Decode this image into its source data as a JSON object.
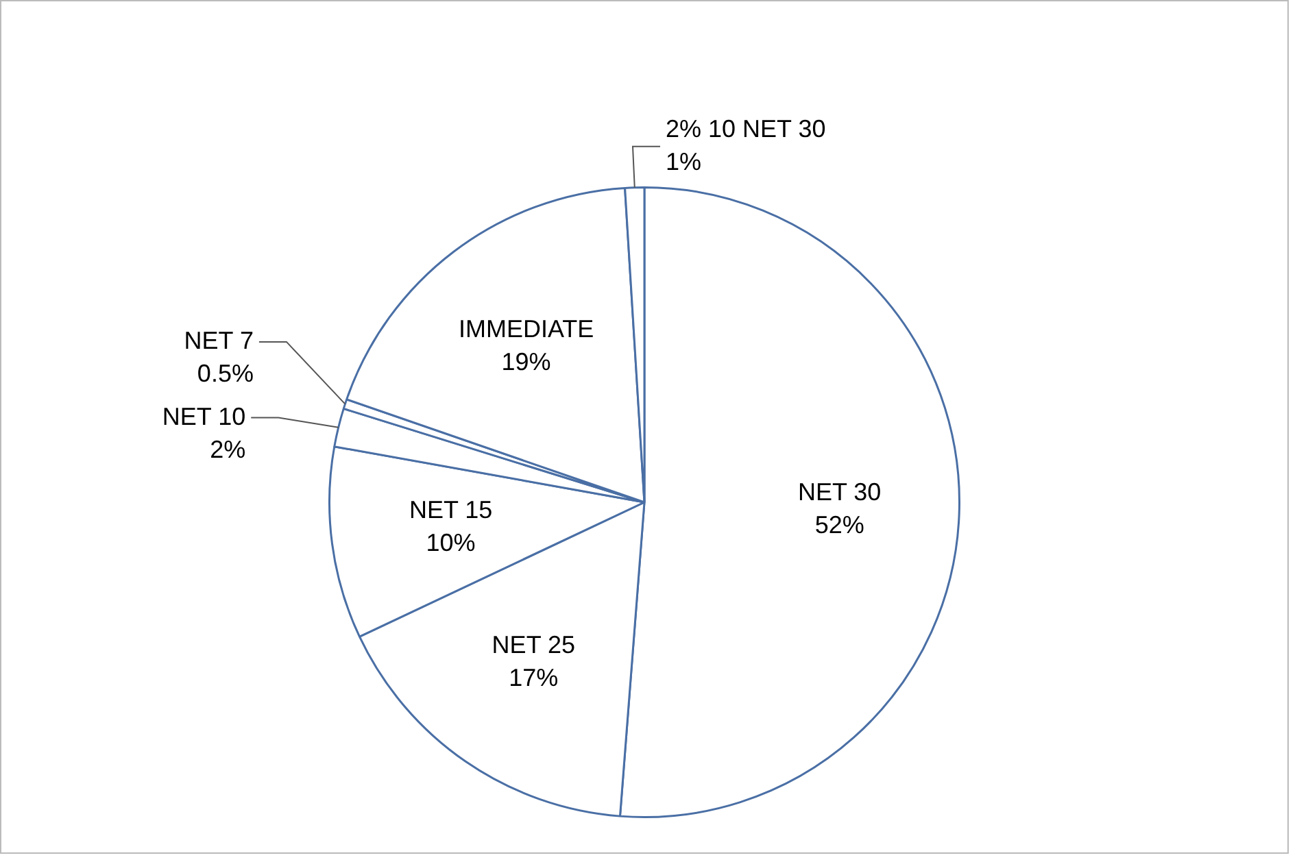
{
  "chart_data": {
    "type": "pie",
    "categories": [
      "NET 30",
      "NET 25",
      "NET 15",
      "NET 10",
      "NET 7",
      "IMMEDIATE",
      "2% 10 NET 30"
    ],
    "values": [
      52,
      17,
      10,
      2,
      0.5,
      19,
      1
    ],
    "value_labels": [
      "52%",
      "17%",
      "10%",
      "2%",
      "0.5%",
      "19%",
      "1%"
    ],
    "colors": [
      "#ffffff",
      "#ffffff",
      "#ffffff",
      "#ffffff",
      "#ffffff",
      "#ffffff",
      "#ffffff"
    ],
    "legend": false
  }
}
